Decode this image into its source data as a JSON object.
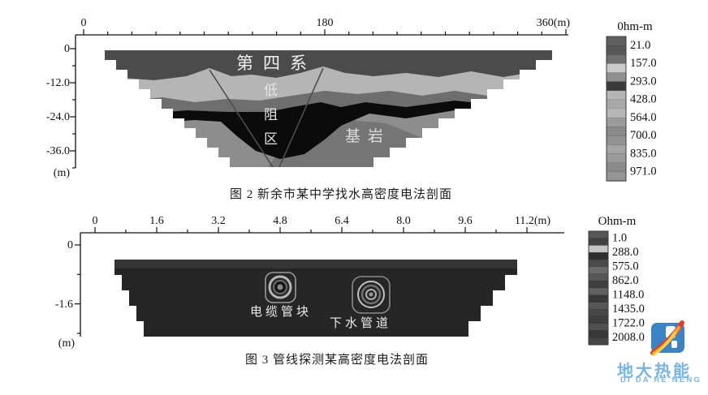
{
  "chart_data": [
    {
      "type": "heatmap",
      "caption": "图 2  新余市某中学找水高密度电法剖面",
      "x_axis": {
        "tick_labels": [
          "0",
          "180",
          "360(m)"
        ],
        "range_m": [
          0,
          360
        ],
        "minor_step_m": 18,
        "position": "top"
      },
      "y_axis": {
        "tick_labels": [
          "0",
          "-12.0",
          "-24.0",
          "-36.0"
        ],
        "unit": "(m)",
        "range_m": [
          0,
          -42
        ],
        "minor_step_m": 6
      },
      "regions": [
        {
          "label": "第四系"
        },
        {
          "label": "低阻区"
        },
        {
          "label": "基岩"
        }
      ],
      "colorbar": {
        "title": "0hm-m",
        "values": [
          "21.0",
          "157.0",
          "293.0",
          "428.0",
          "564.0",
          "700.0",
          "835.0",
          "971.0"
        ],
        "segments": [
          "#5f5f5f",
          "#575757",
          "#6f6f6f",
          "#c9c9c9",
          "#8f8f8f",
          "#3a3a3a",
          "#b5b5b5",
          "#a8a8a8",
          "#b7b7b7",
          "#9b9b9b",
          "#8a8a8a",
          "#929292",
          "#a4a4a4",
          "#9a9a9a",
          "#8b8b8b",
          "#959595"
        ]
      }
    },
    {
      "type": "heatmap",
      "caption": "图 3  管线探测某高密度电法剖面",
      "x_axis": {
        "tick_labels": [
          "0",
          "1.6",
          "3.2",
          "4.8",
          "6.4",
          "8.0",
          "9.6",
          "11.2(m)"
        ],
        "range_m": [
          0,
          11.2
        ],
        "minor_step_m": 0.8,
        "position": "top"
      },
      "y_axis": {
        "tick_labels": [
          "0",
          "-1.6"
        ],
        "unit": "(m)",
        "range_m": [
          0,
          -2.4
        ],
        "minor_step_m": 0.8
      },
      "anomalies": [
        {
          "label": "电缆管块",
          "x_m": 4.8
        },
        {
          "label": "下水管道",
          "x_m": 7.2
        }
      ],
      "colorbar": {
        "title": "Ohm-m",
        "values": [
          "1.0",
          "288.0",
          "575.0",
          "862.0",
          "1148.0",
          "1435.0",
          "1722.0",
          "2008.0"
        ],
        "segments": [
          "#565656",
          "#414141",
          "#c4c4c4",
          "#2f2f2f",
          "#4b4b4b",
          "#6b6b6b",
          "#575757",
          "#3f3f3f",
          "#616161",
          "#393939",
          "#575757",
          "#474747",
          "#3f3f3f",
          "#515151",
          "#363636",
          "#464646"
        ]
      }
    }
  ],
  "logo": {
    "title": "地大热能",
    "subtitle": "DI DA RE NENG",
    "text_color": "#76b4e3",
    "icon_bg": "#3c83c6",
    "flame_colors": [
      "#e23b2e",
      "#f6a12c",
      "#f9d64b"
    ]
  }
}
